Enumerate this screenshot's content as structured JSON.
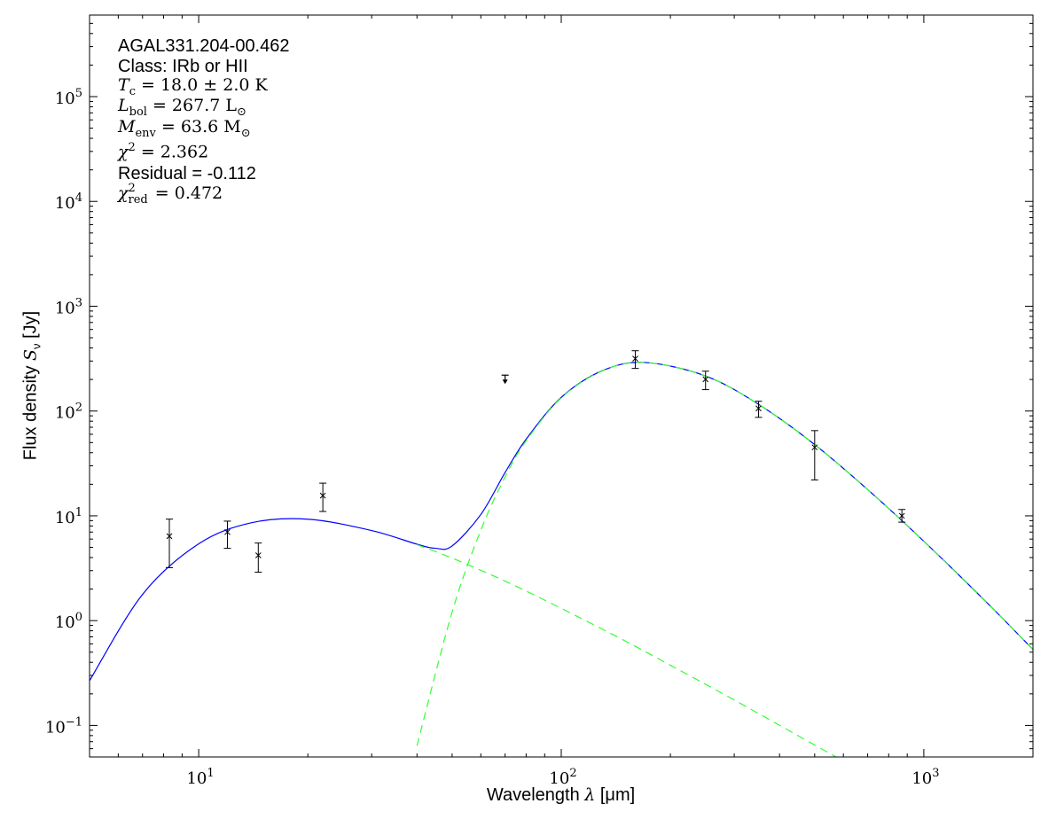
{
  "chart_data": {
    "type": "scatter",
    "xscale": "log",
    "yscale": "log",
    "xlim": [
      5,
      2000
    ],
    "ylim": [
      0.05,
      600000
    ],
    "grid": false,
    "xlabel": {
      "text": "Wavelength ",
      "symbol": "λ",
      "unit": " [μm]"
    },
    "ylabel": {
      "text": "Flux density ",
      "symbol": "S",
      "sub": "ν",
      "unit": " [Jy]"
    },
    "xticks": [
      {
        "base": "10",
        "exp": "1",
        "value": 10
      },
      {
        "base": "10",
        "exp": "2",
        "value": 100
      },
      {
        "base": "10",
        "exp": "3",
        "value": 1000
      }
    ],
    "yticks": [
      {
        "base": "10",
        "exp": "−1",
        "value": 0.1
      },
      {
        "base": "10",
        "exp": "0",
        "value": 1
      },
      {
        "base": "10",
        "exp": "1",
        "value": 10
      },
      {
        "base": "10",
        "exp": "2",
        "value": 100
      },
      {
        "base": "10",
        "exp": "3",
        "value": 1000
      },
      {
        "base": "10",
        "exp": "4",
        "value": 10000
      },
      {
        "base": "10",
        "exp": "5",
        "value": 100000
      }
    ],
    "annotations": {
      "source": "AGAL331.204-00.462",
      "class": "Class: IRb or HII",
      "tc": {
        "sym": "T",
        "sub": "c",
        "rest": " = 18.0 ± 2.0 K"
      },
      "lbol": {
        "sym": "L",
        "sub": "bol",
        "rest": " = 267.7 L",
        "sub2": "⊙"
      },
      "menv": {
        "sym": "M",
        "sub": "env",
        "rest": " = 63.6 M",
        "sub2": "⊙"
      },
      "chi2": {
        "sym": "χ",
        "sup": "2",
        "rest": " = 2.362"
      },
      "residual": "Residual = -0.112",
      "chi2red": {
        "sym": "χ",
        "sup": "2",
        "sub": "red",
        "rest": " = 0.472"
      }
    },
    "points": [
      {
        "x": 8.3,
        "y": 6.4,
        "ylo": 3.2,
        "yhi": 9.3
      },
      {
        "x": 12,
        "y": 7.0,
        "ylo": 4.9,
        "yhi": 8.9
      },
      {
        "x": 14.6,
        "y": 4.2,
        "ylo": 2.9,
        "yhi": 5.5
      },
      {
        "x": 22,
        "y": 15.6,
        "ylo": 11,
        "yhi": 20.5
      },
      {
        "x": 160,
        "y": 316,
        "ylo": 255,
        "yhi": 376
      },
      {
        "x": 250,
        "y": 201,
        "ylo": 160,
        "yhi": 240
      },
      {
        "x": 350,
        "y": 106,
        "ylo": 87,
        "yhi": 124
      },
      {
        "x": 500,
        "y": 45,
        "ylo": 22,
        "yhi": 65
      },
      {
        "x": 870,
        "y": 10,
        "ylo": 8.7,
        "yhi": 11.5
      }
    ],
    "upper_limits": [
      {
        "x": 70,
        "y": 220
      }
    ],
    "series": [
      {
        "style": "solid",
        "color": "#0000ff",
        "x": [
          5,
          7,
          10,
          14,
          20,
          30,
          40,
          45,
          50,
          60,
          70,
          80,
          100,
          130,
          170,
          250,
          350,
          500,
          700,
          1000,
          1500,
          2000
        ],
        "y": [
          0.267,
          1.78,
          5.41,
          8.6,
          9.29,
          7.24,
          5.36,
          4.9,
          5.16,
          10.3,
          25.9,
          53.8,
          134.9,
          243,
          290.5,
          216,
          116,
          47.8,
          17.8,
          5.72,
          1.46,
          0.53
        ]
      },
      {
        "style": "dashed",
        "color": "#33ff33",
        "x": [
          40,
          50,
          70,
          100,
          150,
          200,
          300,
          500,
          700
        ],
        "y": [
          5.3,
          3.95,
          2.38,
          1.31,
          0.64,
          0.375,
          0.175,
          0.065,
          0.034
        ]
      },
      {
        "style": "dashed",
        "color": "#33ff33",
        "x": [
          40,
          50,
          60,
          70,
          80,
          100,
          130,
          170,
          250,
          350,
          500,
          700,
          1000,
          1500,
          2000
        ],
        "y": [
          0.064,
          1.21,
          7.3,
          23.5,
          51.9,
          133.6,
          242,
          290,
          216,
          116,
          47.7,
          17.8,
          5.7,
          1.45,
          0.53
        ]
      }
    ]
  }
}
